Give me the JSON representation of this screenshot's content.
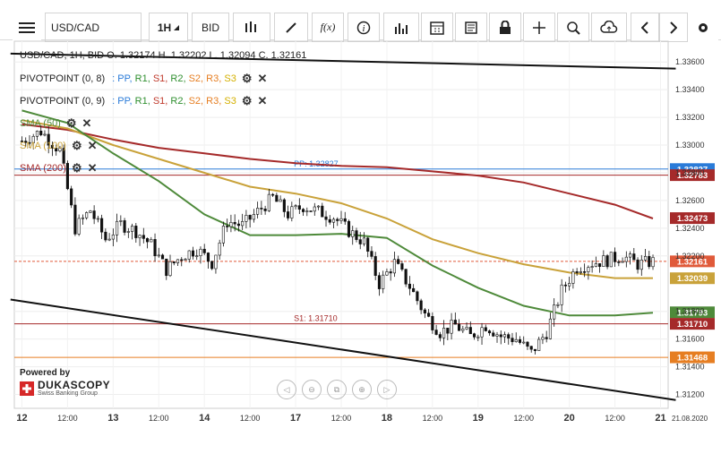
{
  "toolbar": {
    "symbol": "USD/CAD",
    "timeframe": "1H",
    "price_type": "BID",
    "fx_label": "f(x)"
  },
  "ohlc_text": "USD/CAD, 1H, BID   O. 1.32174 H. 1.32202 L. 1.32094 C. 1.32161",
  "indicators": [
    {
      "label": "PIVOTPOINT (0, 8)",
      "color": "#222222"
    },
    {
      "label": "PIVOTPOINT (0, 9)",
      "color": "#222222"
    },
    {
      "label": "SMA (50)",
      "color": "#4e8a3a"
    },
    {
      "label": "SMA (100)",
      "color": "#c9a23a"
    },
    {
      "label": "SMA (200)",
      "color": "#a52a2a"
    }
  ],
  "pivot_keys": [
    {
      "text": ": PP,",
      "color": "#2a7bd8"
    },
    {
      "text": "R1,",
      "color": "#2f8f2f"
    },
    {
      "text": "S1,",
      "color": "#c0392b"
    },
    {
      "text": "R2,",
      "color": "#2f8f2f"
    },
    {
      "text": "S2,",
      "color": "#e67e22"
    },
    {
      "text": "R3,",
      "color": "#e67e22"
    },
    {
      "text": "S3",
      "color": "#d4b000"
    }
  ],
  "logo": {
    "powered": "Powered by",
    "brand": "DUKASCOPY",
    "sub": "Swiss Banking Group"
  },
  "chart_data": {
    "type": "candlestick",
    "symbol": "USD/CAD",
    "y_ticks": [
      1.336,
      1.334,
      1.332,
      1.33,
      1.328,
      1.326,
      1.324,
      1.322,
      1.318,
      1.316,
      1.314,
      1.312
    ],
    "y_range": [
      1.311,
      1.3375
    ],
    "x_labels": [
      {
        "t": 0,
        "label": "12",
        "bold": true
      },
      {
        "t": 12,
        "label": "12:00",
        "bold": false
      },
      {
        "t": 24,
        "label": "13",
        "bold": true
      },
      {
        "t": 36,
        "label": "12:00",
        "bold": false
      },
      {
        "t": 48,
        "label": "14",
        "bold": true
      },
      {
        "t": 60,
        "label": "12:00",
        "bold": false
      },
      {
        "t": 72,
        "label": "17",
        "bold": true
      },
      {
        "t": 84,
        "label": "12:00",
        "bold": false
      },
      {
        "t": 96,
        "label": "18",
        "bold": true
      },
      {
        "t": 108,
        "label": "12:00",
        "bold": false
      },
      {
        "t": 120,
        "label": "19",
        "bold": true
      },
      {
        "t": 132,
        "label": "12:00",
        "bold": false
      },
      {
        "t": 144,
        "label": "20",
        "bold": true
      },
      {
        "t": 156,
        "label": "12:00",
        "bold": false
      },
      {
        "t": 168,
        "label": "21",
        "bold": true
      }
    ],
    "x_end_label": "21.08.2020",
    "levels": [
      {
        "name": "PP: 1.32827",
        "value": 1.32827,
        "color": "#2a7bd8",
        "label_x_t": 72
      },
      {
        "name": "",
        "value": 1.32783,
        "color": "#a52a2a",
        "label_x_t": null
      },
      {
        "name": "S1: 1.31710",
        "value": 1.3171,
        "color": "#a52a2a",
        "label_x_t": 72
      },
      {
        "name": "",
        "value": 1.31468,
        "color": "#e67e22",
        "label_x_t": null
      }
    ],
    "price_tags": [
      {
        "text": "1.32827",
        "value": 1.32827,
        "color": "#2a7bd8"
      },
      {
        "text": "1.32783",
        "value": 1.32783,
        "color": "#a52a2a"
      },
      {
        "text": "1.32473",
        "value": 1.32473,
        "color": "#a52a2a"
      },
      {
        "text": "1.32161",
        "value": 1.32161,
        "color": "#e05a3a"
      },
      {
        "text": "1.32039",
        "value": 1.32039,
        "color": "#c9a23a"
      },
      {
        "text": "1.31793",
        "value": 1.31793,
        "color": "#4e8a3a"
      },
      {
        "text": "1.31710",
        "value": 1.3171,
        "color": "#a52a2a"
      },
      {
        "text": "1.31468",
        "value": 1.31468,
        "color": "#e67e22"
      }
    ],
    "last_close": 1.32161,
    "trend_lines": [
      {
        "t1": -3,
        "v1": 1.3366,
        "t2": 172,
        "v2": 1.33552
      },
      {
        "t1": -3,
        "v1": 1.31885,
        "t2": 172,
        "v2": 1.3116
      }
    ],
    "sma200": [
      [
        0,
        1.3315
      ],
      [
        12,
        1.3311
      ],
      [
        24,
        1.3304
      ],
      [
        36,
        1.3298
      ],
      [
        48,
        1.3294
      ],
      [
        60,
        1.329
      ],
      [
        72,
        1.3287
      ],
      [
        84,
        1.3285
      ],
      [
        96,
        1.3284
      ],
      [
        108,
        1.3281
      ],
      [
        120,
        1.3278
      ],
      [
        132,
        1.3273
      ],
      [
        144,
        1.3265
      ],
      [
        156,
        1.3257
      ],
      [
        166,
        1.3247
      ]
    ],
    "sma100": [
      [
        0,
        1.3318
      ],
      [
        12,
        1.3312
      ],
      [
        24,
        1.33
      ],
      [
        36,
        1.329
      ],
      [
        48,
        1.328
      ],
      [
        60,
        1.327
      ],
      [
        72,
        1.3265
      ],
      [
        84,
        1.3258
      ],
      [
        96,
        1.3247
      ],
      [
        108,
        1.3232
      ],
      [
        120,
        1.3222
      ],
      [
        132,
        1.3214
      ],
      [
        144,
        1.3208
      ],
      [
        156,
        1.3204
      ],
      [
        166,
        1.3204
      ]
    ],
    "sma50": [
      [
        0,
        1.3325
      ],
      [
        12,
        1.3316
      ],
      [
        24,
        1.3294
      ],
      [
        36,
        1.3274
      ],
      [
        48,
        1.325
      ],
      [
        60,
        1.3235
      ],
      [
        72,
        1.3235
      ],
      [
        84,
        1.3236
      ],
      [
        96,
        1.3233
      ],
      [
        108,
        1.3213
      ],
      [
        120,
        1.3197
      ],
      [
        132,
        1.3184
      ],
      [
        144,
        1.3177
      ],
      [
        156,
        1.3177
      ],
      [
        166,
        1.3179
      ]
    ],
    "close_path": [
      [
        0,
        1.3303
      ],
      [
        5,
        1.331
      ],
      [
        10,
        1.3296
      ],
      [
        14,
        1.324
      ],
      [
        18,
        1.3253
      ],
      [
        22,
        1.3232
      ],
      [
        26,
        1.3243
      ],
      [
        30,
        1.3238
      ],
      [
        34,
        1.3228
      ],
      [
        38,
        1.321
      ],
      [
        42,
        1.322
      ],
      [
        46,
        1.3225
      ],
      [
        50,
        1.3215
      ],
      [
        54,
        1.3245
      ],
      [
        58,
        1.3242
      ],
      [
        62,
        1.3252
      ],
      [
        66,
        1.3262
      ],
      [
        70,
        1.325
      ],
      [
        74,
        1.3256
      ],
      [
        78,
        1.3252
      ],
      [
        82,
        1.3248
      ],
      [
        86,
        1.3238
      ],
      [
        90,
        1.323
      ],
      [
        94,
        1.32
      ],
      [
        98,
        1.3215
      ],
      [
        102,
        1.3198
      ],
      [
        106,
        1.3178
      ],
      [
        110,
        1.3165
      ],
      [
        114,
        1.317
      ],
      [
        118,
        1.3162
      ],
      [
        122,
        1.317
      ],
      [
        126,
        1.3162
      ],
      [
        130,
        1.316
      ],
      [
        134,
        1.315
      ],
      [
        138,
        1.3165
      ],
      [
        142,
        1.3195
      ],
      [
        146,
        1.3212
      ],
      [
        150,
        1.3215
      ],
      [
        154,
        1.3217
      ],
      [
        158,
        1.322
      ],
      [
        162,
        1.3214
      ],
      [
        166,
        1.3216
      ]
    ]
  }
}
